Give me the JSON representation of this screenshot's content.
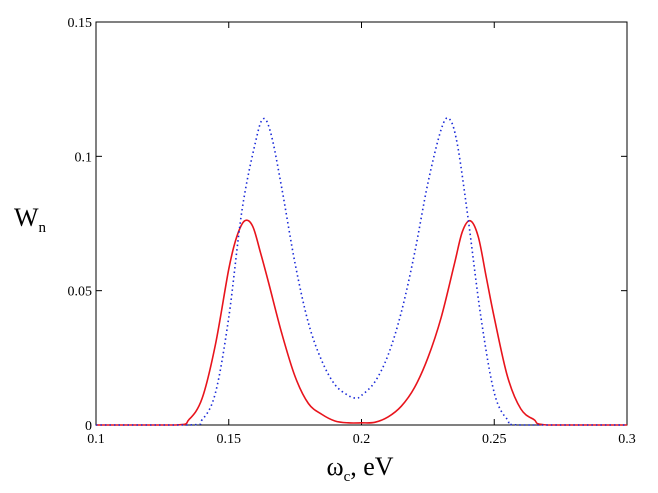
{
  "chart_data": {
    "type": "line",
    "xlabel": {
      "main": "ω",
      "sub": "c",
      "rest": ", eV"
    },
    "ylabel": {
      "main": "W",
      "sub": "n"
    },
    "xlim": [
      0.1,
      0.3
    ],
    "ylim": [
      0,
      0.15
    ],
    "xticks": [
      0.1,
      0.15,
      0.2,
      0.25,
      0.3
    ],
    "xtick_labels": [
      "0.1",
      "0.15",
      "0.2",
      "0.25",
      "0.3"
    ],
    "yticks": [
      0,
      0.05,
      0.1,
      0.15
    ],
    "ytick_labels": [
      "0",
      "0.05",
      "0.1",
      "0.15"
    ],
    "grid": false,
    "series": [
      {
        "color": "#e8141c",
        "line_style": "solid",
        "x": [
          0.1,
          0.13,
          0.135,
          0.14,
          0.145,
          0.15,
          0.153,
          0.156,
          0.159,
          0.162,
          0.165,
          0.17,
          0.175,
          0.18,
          0.185,
          0.19,
          0.195,
          0.2,
          0.205,
          0.21,
          0.215,
          0.22,
          0.225,
          0.23,
          0.235,
          0.238,
          0.241,
          0.244,
          0.247,
          0.25,
          0.255,
          0.26,
          0.265,
          0.27,
          0.3
        ],
        "y": [
          0,
          0.0,
          0.002,
          0.01,
          0.03,
          0.058,
          0.07,
          0.076,
          0.074,
          0.064,
          0.053,
          0.034,
          0.018,
          0.008,
          0.004,
          0.0015,
          0.0008,
          0.0008,
          0.001,
          0.003,
          0.007,
          0.014,
          0.025,
          0.04,
          0.06,
          0.072,
          0.076,
          0.07,
          0.055,
          0.04,
          0.018,
          0.006,
          0.002,
          0.0,
          0
        ]
      },
      {
        "color": "#1a2ad8",
        "line_style": "dotted",
        "x": [
          0.1,
          0.135,
          0.14,
          0.145,
          0.15,
          0.155,
          0.16,
          0.163,
          0.166,
          0.17,
          0.175,
          0.18,
          0.185,
          0.19,
          0.195,
          0.198,
          0.2,
          0.205,
          0.21,
          0.215,
          0.22,
          0.225,
          0.23,
          0.233,
          0.236,
          0.24,
          0.245,
          0.25,
          0.255,
          0.26,
          0.3
        ],
        "y": [
          0,
          0.0,
          0.002,
          0.012,
          0.04,
          0.08,
          0.105,
          0.114,
          0.108,
          0.088,
          0.06,
          0.038,
          0.024,
          0.015,
          0.011,
          0.01,
          0.011,
          0.016,
          0.026,
          0.042,
          0.064,
          0.09,
          0.11,
          0.114,
          0.105,
          0.078,
          0.04,
          0.012,
          0.002,
          0.0,
          0
        ]
      }
    ]
  }
}
